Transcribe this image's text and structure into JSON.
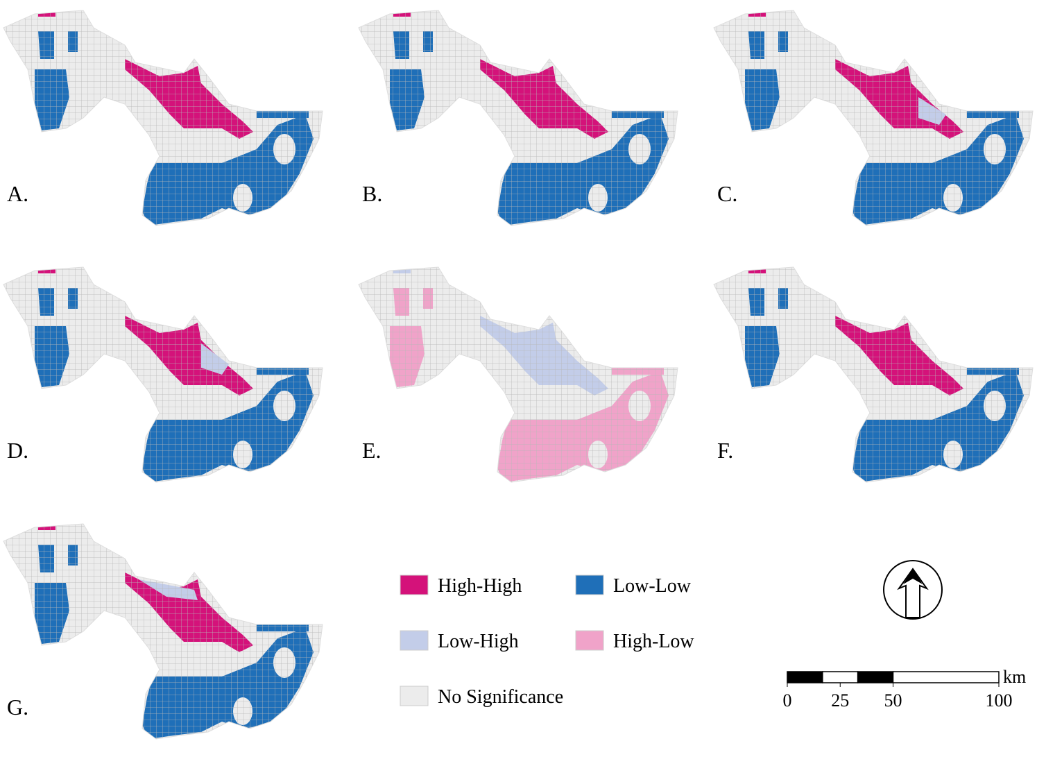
{
  "panels": [
    {
      "label": "A."
    },
    {
      "label": "B."
    },
    {
      "label": "C."
    },
    {
      "label": "D."
    },
    {
      "label": "E."
    },
    {
      "label": "F."
    },
    {
      "label": "G."
    }
  ],
  "legend": [
    {
      "name": "High-High",
      "color": "#d4127a"
    },
    {
      "name": "Low-Low",
      "color": "#1f6fb8"
    },
    {
      "name": "Low-High",
      "color": "#c3cde9"
    },
    {
      "name": "High-Low",
      "color": "#f0a3c9"
    },
    {
      "name": "No Significance",
      "color": "#ececec"
    }
  ],
  "scale_bar": {
    "ticks": [
      0,
      25,
      50,
      100
    ],
    "unit": "km"
  }
}
